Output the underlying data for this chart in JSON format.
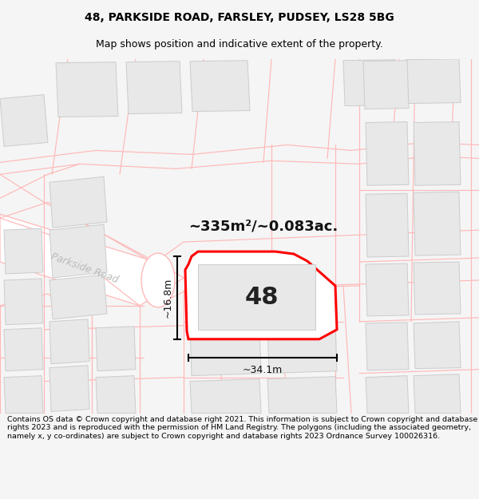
{
  "title": "48, PARKSIDE ROAD, FARSLEY, PUDSEY, LS28 5BG",
  "subtitle": "Map shows position and indicative extent of the property.",
  "footer": "Contains OS data © Crown copyright and database right 2021. This information is subject to Crown copyright and database rights 2023 and is reproduced with the permission of HM Land Registry. The polygons (including the associated geometry, namely x, y co-ordinates) are subject to Crown copyright and database rights 2023 Ordnance Survey 100026316.",
  "area_label": "~335m²/~0.083ac.",
  "number_label": "48",
  "width_label": "~34.1m",
  "height_label": "~16.8m",
  "road_label": "Parkside Road",
  "bg_color": "#f5f5f5",
  "map_bg": "#ffffff",
  "plot_fill": "#ffffff",
  "plot_edge": "#ff0000",
  "building_fill": "#e8e8e8",
  "building_edge": "#cccccc",
  "pink": "#ffb8b8",
  "title_fontsize": 10,
  "subtitle_fontsize": 9,
  "footer_fontsize": 6.8
}
